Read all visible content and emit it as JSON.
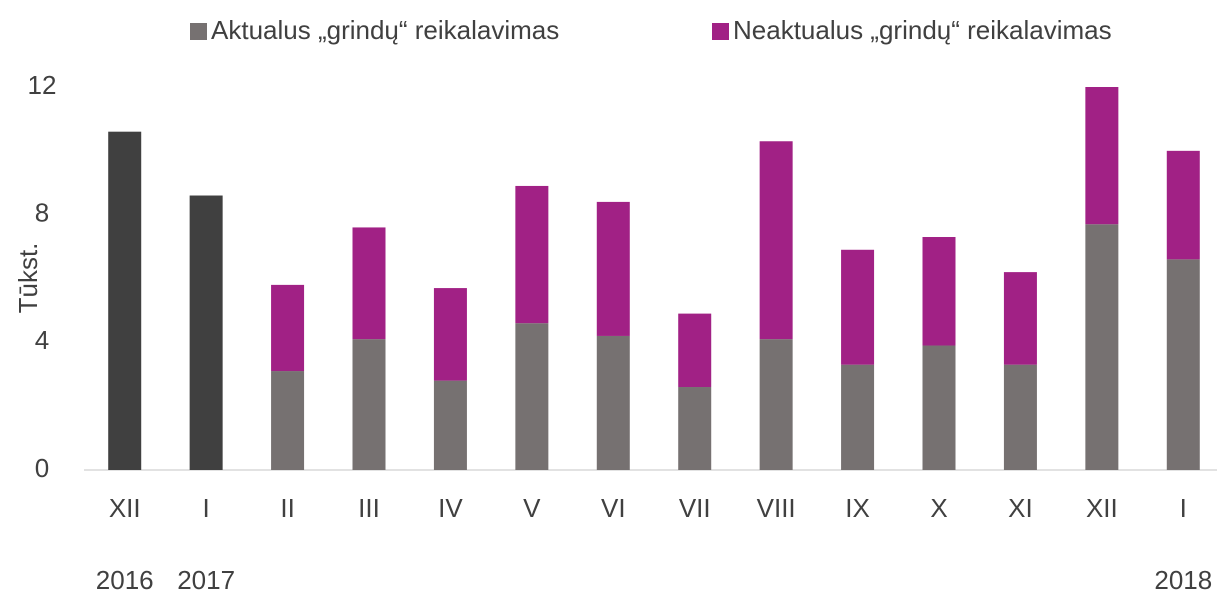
{
  "chart_data": {
    "type": "stacked_bar",
    "y_label": "Tūkst.",
    "categories": [
      "XII",
      "I",
      "II",
      "III",
      "IV",
      "V",
      "VI",
      "VII",
      "VIII",
      "IX",
      "X",
      "XI",
      "XII",
      "I"
    ],
    "years": [
      "2016",
      "2017",
      null,
      null,
      null,
      null,
      null,
      null,
      null,
      null,
      null,
      null,
      null,
      "2018"
    ],
    "series": [
      {
        "name": "Aktualus „grindų“ reikalavimas",
        "color": "#767171",
        "values": [
          null,
          null,
          3.1,
          4.1,
          2.8,
          4.6,
          4.2,
          2.6,
          4.1,
          3.3,
          3.9,
          3.3,
          7.7,
          6.6
        ]
      },
      {
        "name": "Neaktualus „grindų“ reikalavimas",
        "color": "#a12185",
        "values": [
          null,
          null,
          2.7,
          3.5,
          2.9,
          4.3,
          4.2,
          2.3,
          6.2,
          3.6,
          3.4,
          2.9,
          4.3,
          3.4
        ]
      },
      {
        "color": "#404040",
        "values": [
          10.6,
          8.6,
          null,
          null,
          null,
          null,
          null,
          null,
          null,
          null,
          null,
          null,
          null,
          null
        ]
      }
    ],
    "ylim": [
      0,
      12
    ],
    "yticks": [
      0,
      4,
      8,
      12
    ],
    "grid": false
  }
}
